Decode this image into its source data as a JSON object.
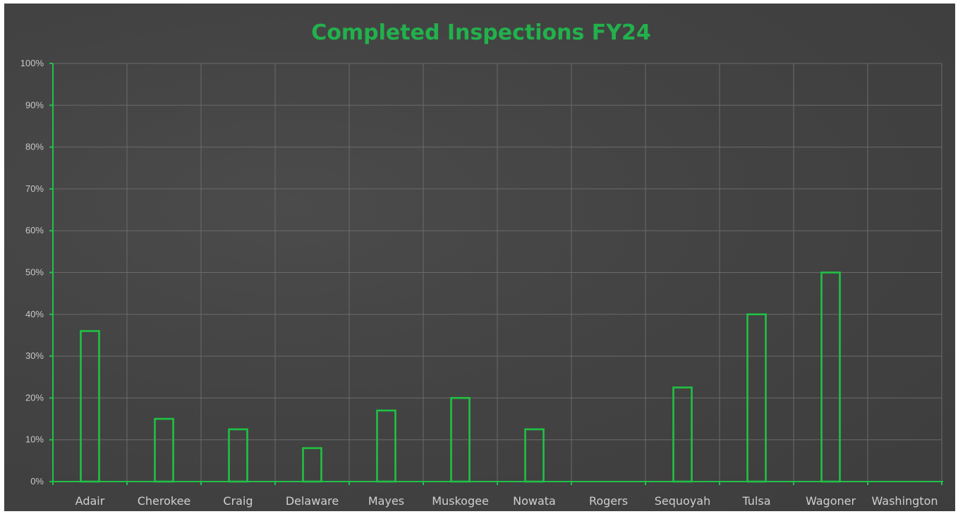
{
  "chart_data": {
    "type": "bar",
    "title": "Completed Inspections FY24",
    "xlabel": "",
    "ylabel": "",
    "categories": [
      "Adair",
      "Cherokee",
      "Craig",
      "Delaware",
      "Mayes",
      "Muskogee",
      "Nowata",
      "Rogers",
      "Sequoyah",
      "Tulsa",
      "Wagoner",
      "Washington"
    ],
    "values": [
      36,
      15,
      12.5,
      8,
      17,
      20,
      12.5,
      0,
      22.5,
      40,
      50,
      0
    ],
    "value_unit": "%",
    "ylim": [
      0,
      100
    ],
    "yticks": [
      "0%",
      "10%",
      "20%",
      "30%",
      "40%",
      "50%",
      "60%",
      "70%",
      "80%",
      "90%",
      "100%"
    ],
    "grid": true,
    "legend": "none",
    "colors": {
      "bar_outline": "#1fc243",
      "title": "#22b14c",
      "background": "#444444",
      "gridline": "#6a6a6a"
    }
  }
}
